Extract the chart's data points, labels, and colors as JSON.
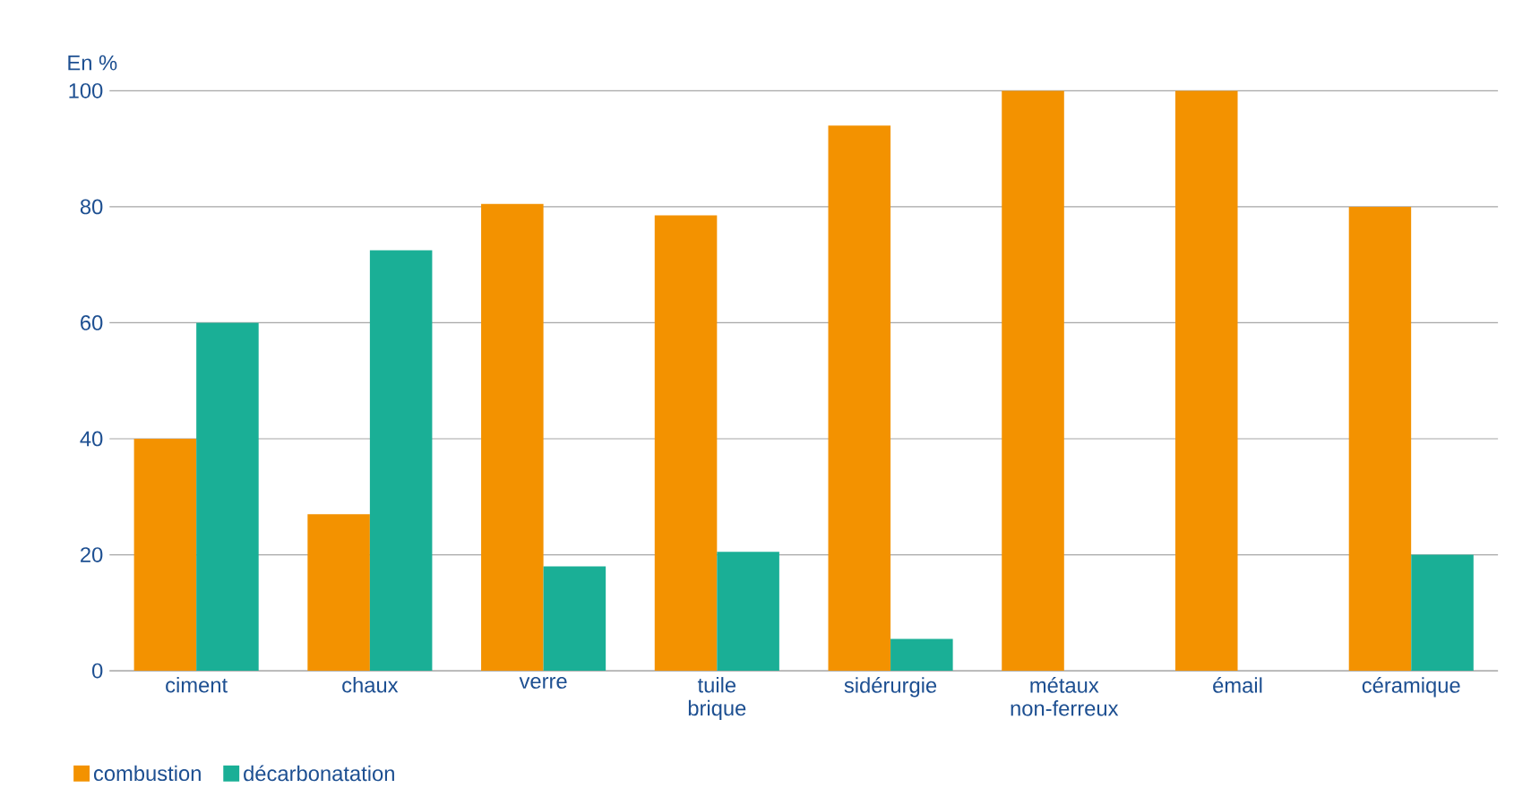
{
  "chart_data": {
    "type": "bar",
    "ylabel": "En %",
    "categories": [
      "ciment",
      "chaux",
      "verre",
      "tuile brique",
      "sidérurgie",
      "métaux non-ferreux",
      "émail",
      "céramique"
    ],
    "series": [
      {
        "name": "combustion",
        "color": "#f39200",
        "values": [
          40,
          27,
          80.5,
          78.5,
          94,
          100,
          100,
          80
        ]
      },
      {
        "name": "décarbonatation",
        "color": "#1aaf96",
        "values": [
          60,
          72.5,
          18,
          20.5,
          5.5,
          0,
          0,
          20
        ]
      }
    ],
    "ylim": [
      0,
      100
    ],
    "yticks": [
      0,
      20,
      40,
      60,
      80,
      100
    ],
    "grid": "y",
    "legend": "bottom left"
  }
}
